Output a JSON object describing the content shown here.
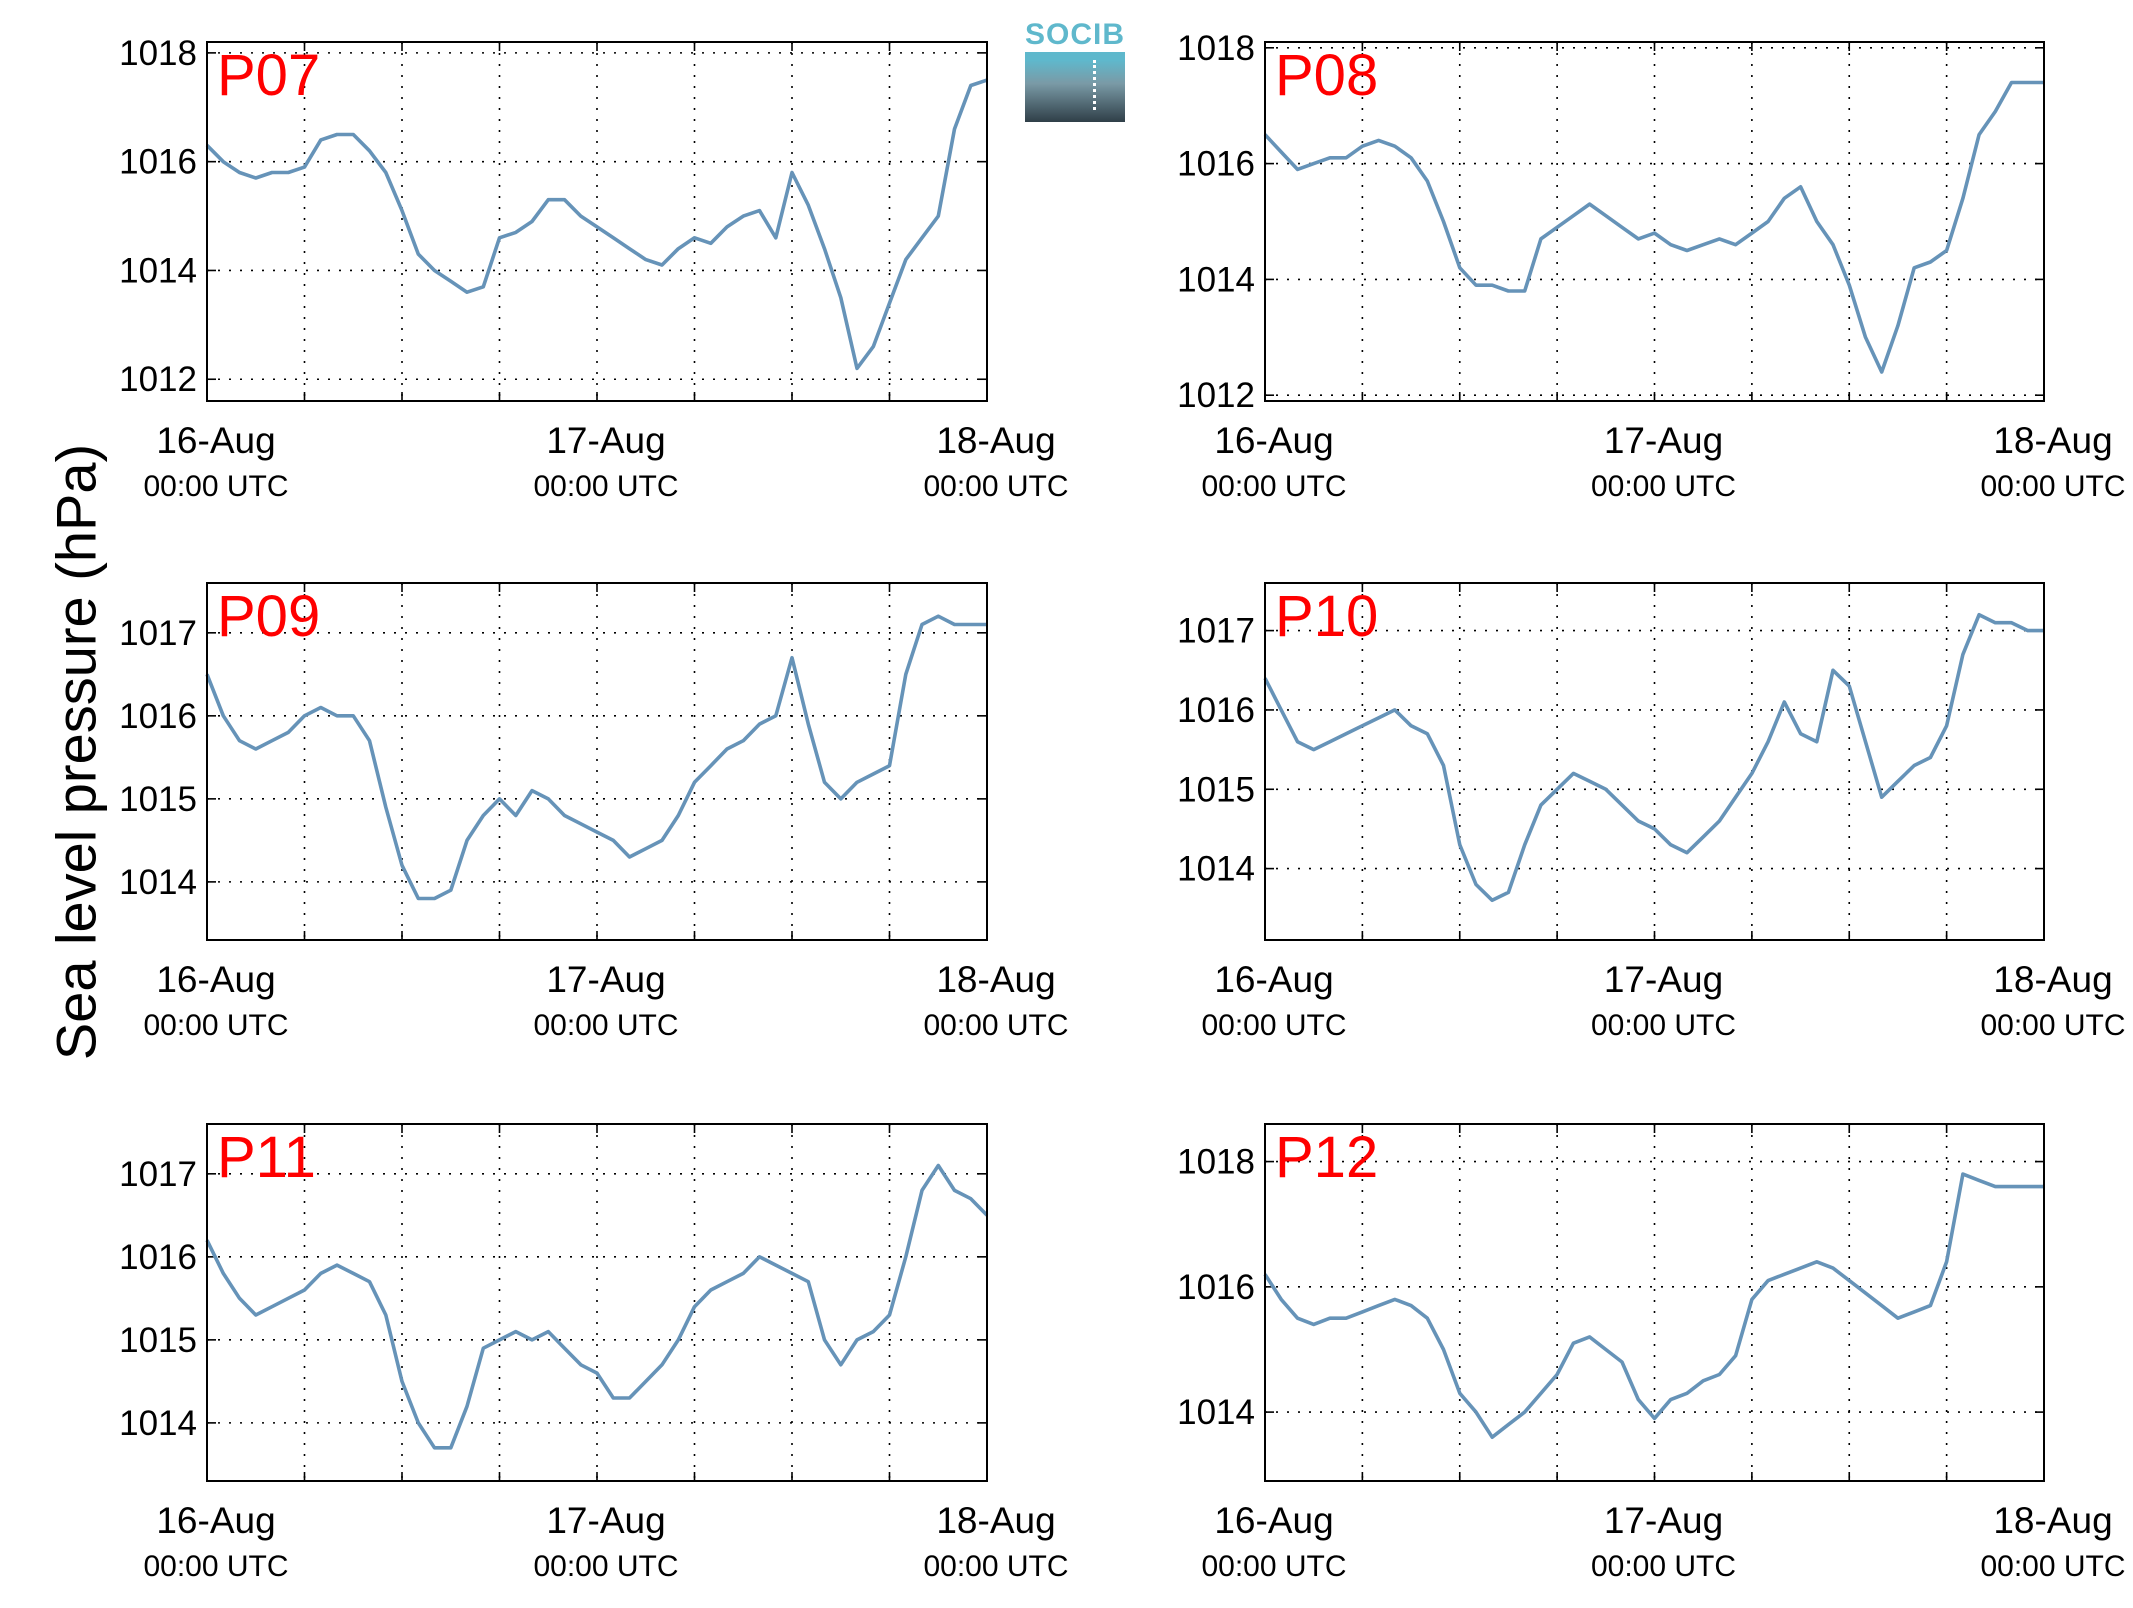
{
  "ylabel": "Sea level pressure (hPa)",
  "logo_text": "SOCIB",
  "line_color": "#6693b8",
  "label_color": "#ff0000",
  "chart_data": [
    {
      "type": "line",
      "title": "P07",
      "xlim": [
        0,
        48
      ],
      "ylim": [
        1011.6,
        1018.2
      ],
      "yticks": [
        1012,
        1014,
        1016,
        1018
      ],
      "x_tick_labels": [
        {
          "x": 0,
          "date": "16-Aug",
          "time": "00:00 UTC"
        },
        {
          "x": 24,
          "date": "17-Aug",
          "time": "00:00 UTC"
        },
        {
          "x": 48,
          "date": "18-Aug",
          "time": "00:00 UTC"
        }
      ],
      "xgrid": [
        6,
        12,
        18,
        24,
        30,
        36,
        42
      ],
      "x": [
        0,
        1,
        2,
        3,
        4,
        5,
        6,
        7,
        8,
        9,
        10,
        11,
        12,
        13,
        14,
        15,
        16,
        17,
        18,
        19,
        20,
        21,
        22,
        23,
        24,
        25,
        26,
        27,
        28,
        29,
        30,
        31,
        32,
        33,
        34,
        35,
        36,
        37,
        38,
        39,
        40,
        41,
        42,
        43,
        44,
        45,
        46,
        47,
        48
      ],
      "values": [
        1016.3,
        1016.0,
        1015.8,
        1015.7,
        1015.8,
        1015.8,
        1015.9,
        1016.4,
        1016.5,
        1016.5,
        1016.2,
        1015.8,
        1015.1,
        1014.3,
        1014.0,
        1013.8,
        1013.6,
        1013.7,
        1014.6,
        1014.7,
        1014.9,
        1015.3,
        1015.3,
        1015.0,
        1014.8,
        1014.6,
        1014.4,
        1014.2,
        1014.1,
        1014.4,
        1014.6,
        1014.5,
        1014.8,
        1015.0,
        1015.1,
        1014.6,
        1015.8,
        1015.2,
        1014.4,
        1013.5,
        1012.2,
        1012.6,
        1013.4,
        1014.2,
        1014.6,
        1015.0,
        1016.6,
        1017.4,
        1017.5
      ]
    },
    {
      "type": "line",
      "title": "P08",
      "xlim": [
        0,
        48
      ],
      "ylim": [
        1011.9,
        1018.1
      ],
      "yticks": [
        1012,
        1014,
        1016,
        1018
      ],
      "x_tick_labels": [
        {
          "x": 0,
          "date": "16-Aug",
          "time": "00:00 UTC"
        },
        {
          "x": 24,
          "date": "17-Aug",
          "time": "00:00 UTC"
        },
        {
          "x": 48,
          "date": "18-Aug",
          "time": "00:00 UTC"
        }
      ],
      "xgrid": [
        6,
        12,
        18,
        24,
        30,
        36,
        42
      ],
      "x": [
        0,
        1,
        2,
        3,
        4,
        5,
        6,
        7,
        8,
        9,
        10,
        11,
        12,
        13,
        14,
        15,
        16,
        17,
        18,
        19,
        20,
        21,
        22,
        23,
        24,
        25,
        26,
        27,
        28,
        29,
        30,
        31,
        32,
        33,
        34,
        35,
        36,
        37,
        38,
        39,
        40,
        41,
        42,
        43,
        44,
        45,
        46,
        47,
        48
      ],
      "values": [
        1016.5,
        1016.2,
        1015.9,
        1016.0,
        1016.1,
        1016.1,
        1016.3,
        1016.4,
        1016.3,
        1016.1,
        1015.7,
        1015.0,
        1014.2,
        1013.9,
        1013.9,
        1013.8,
        1013.8,
        1014.7,
        1014.9,
        1015.1,
        1015.3,
        1015.1,
        1014.9,
        1014.7,
        1014.8,
        1014.6,
        1014.5,
        1014.6,
        1014.7,
        1014.6,
        1014.8,
        1015.0,
        1015.4,
        1015.6,
        1015.0,
        1014.6,
        1013.9,
        1013.0,
        1012.4,
        1013.2,
        1014.2,
        1014.3,
        1014.5,
        1015.4,
        1016.5,
        1016.9,
        1017.4,
        1017.4,
        1017.4
      ]
    },
    {
      "type": "line",
      "title": "P09",
      "xlim": [
        0,
        48
      ],
      "ylim": [
        1013.3,
        1017.6
      ],
      "yticks": [
        1014,
        1015,
        1016,
        1017
      ],
      "x_tick_labels": [
        {
          "x": 0,
          "date": "16-Aug",
          "time": "00:00 UTC"
        },
        {
          "x": 24,
          "date": "17-Aug",
          "time": "00:00 UTC"
        },
        {
          "x": 48,
          "date": "18-Aug",
          "time": "00:00 UTC"
        }
      ],
      "xgrid": [
        6,
        12,
        18,
        24,
        30,
        36,
        42
      ],
      "x": [
        0,
        1,
        2,
        3,
        4,
        5,
        6,
        7,
        8,
        9,
        10,
        11,
        12,
        13,
        14,
        15,
        16,
        17,
        18,
        19,
        20,
        21,
        22,
        23,
        24,
        25,
        26,
        27,
        28,
        29,
        30,
        31,
        32,
        33,
        34,
        35,
        36,
        37,
        38,
        39,
        40,
        41,
        42,
        43,
        44,
        45,
        46,
        47,
        48
      ],
      "values": [
        1016.5,
        1016.0,
        1015.7,
        1015.6,
        1015.7,
        1015.8,
        1016.0,
        1016.1,
        1016.0,
        1016.0,
        1015.7,
        1014.9,
        1014.2,
        1013.8,
        1013.8,
        1013.9,
        1014.5,
        1014.8,
        1015.0,
        1014.8,
        1015.1,
        1015.0,
        1014.8,
        1014.7,
        1014.6,
        1014.5,
        1014.3,
        1014.4,
        1014.5,
        1014.8,
        1015.2,
        1015.4,
        1015.6,
        1015.7,
        1015.9,
        1016.0,
        1016.7,
        1015.9,
        1015.2,
        1015.0,
        1015.2,
        1015.3,
        1015.4,
        1016.5,
        1017.1,
        1017.2,
        1017.1,
        1017.1,
        1017.1
      ]
    },
    {
      "type": "line",
      "title": "P10",
      "xlim": [
        0,
        48
      ],
      "ylim": [
        1013.1,
        1017.6
      ],
      "yticks": [
        1014,
        1015,
        1016,
        1017
      ],
      "x_tick_labels": [
        {
          "x": 0,
          "date": "16-Aug",
          "time": "00:00 UTC"
        },
        {
          "x": 24,
          "date": "17-Aug",
          "time": "00:00 UTC"
        },
        {
          "x": 48,
          "date": "18-Aug",
          "time": "00:00 UTC"
        }
      ],
      "xgrid": [
        6,
        12,
        18,
        24,
        30,
        36,
        42
      ],
      "x": [
        0,
        1,
        2,
        3,
        4,
        5,
        6,
        7,
        8,
        9,
        10,
        11,
        12,
        13,
        14,
        15,
        16,
        17,
        18,
        19,
        20,
        21,
        22,
        23,
        24,
        25,
        26,
        27,
        28,
        29,
        30,
        31,
        32,
        33,
        34,
        35,
        36,
        37,
        38,
        39,
        40,
        41,
        42,
        43,
        44,
        45,
        46,
        47,
        48
      ],
      "values": [
        1016.4,
        1016.0,
        1015.6,
        1015.5,
        1015.6,
        1015.7,
        1015.8,
        1015.9,
        1016.0,
        1015.8,
        1015.7,
        1015.3,
        1014.3,
        1013.8,
        1013.6,
        1013.7,
        1014.3,
        1014.8,
        1015.0,
        1015.2,
        1015.1,
        1015.0,
        1014.8,
        1014.6,
        1014.5,
        1014.3,
        1014.2,
        1014.4,
        1014.6,
        1014.9,
        1015.2,
        1015.6,
        1016.1,
        1015.7,
        1015.6,
        1016.5,
        1016.3,
        1015.6,
        1014.9,
        1015.1,
        1015.3,
        1015.4,
        1015.8,
        1016.7,
        1017.2,
        1017.1,
        1017.1,
        1017.0,
        1017.0
      ]
    },
    {
      "type": "line",
      "title": "P11",
      "xlim": [
        0,
        48
      ],
      "ylim": [
        1013.3,
        1017.6
      ],
      "yticks": [
        1014,
        1015,
        1016,
        1017
      ],
      "x_tick_labels": [
        {
          "x": 0,
          "date": "16-Aug",
          "time": "00:00 UTC"
        },
        {
          "x": 24,
          "date": "17-Aug",
          "time": "00:00 UTC"
        },
        {
          "x": 48,
          "date": "18-Aug",
          "time": "00:00 UTC"
        }
      ],
      "xgrid": [
        6,
        12,
        18,
        24,
        30,
        36,
        42
      ],
      "x": [
        0,
        1,
        2,
        3,
        4,
        5,
        6,
        7,
        8,
        9,
        10,
        11,
        12,
        13,
        14,
        15,
        16,
        17,
        18,
        19,
        20,
        21,
        22,
        23,
        24,
        25,
        26,
        27,
        28,
        29,
        30,
        31,
        32,
        33,
        34,
        35,
        36,
        37,
        38,
        39,
        40,
        41,
        42,
        43,
        44,
        45,
        46,
        47,
        48
      ],
      "values": [
        1016.2,
        1015.8,
        1015.5,
        1015.3,
        1015.4,
        1015.5,
        1015.6,
        1015.8,
        1015.9,
        1015.8,
        1015.7,
        1015.3,
        1014.5,
        1014.0,
        1013.7,
        1013.7,
        1014.2,
        1014.9,
        1015.0,
        1015.1,
        1015.0,
        1015.1,
        1014.9,
        1014.7,
        1014.6,
        1014.3,
        1014.3,
        1014.5,
        1014.7,
        1015.0,
        1015.4,
        1015.6,
        1015.7,
        1015.8,
        1016.0,
        1015.9,
        1015.8,
        1015.7,
        1015.0,
        1014.7,
        1015.0,
        1015.1,
        1015.3,
        1016.0,
        1016.8,
        1017.1,
        1016.8,
        1016.7,
        1016.5
      ]
    },
    {
      "type": "line",
      "title": "P12",
      "xlim": [
        0,
        48
      ],
      "ylim": [
        1012.9,
        1018.6
      ],
      "yticks": [
        1014,
        1016,
        1018
      ],
      "x_tick_labels": [
        {
          "x": 0,
          "date": "16-Aug",
          "time": "00:00 UTC"
        },
        {
          "x": 24,
          "date": "17-Aug",
          "time": "00:00 UTC"
        },
        {
          "x": 48,
          "date": "18-Aug",
          "time": "00:00 UTC"
        }
      ],
      "xgrid": [
        6,
        12,
        18,
        24,
        30,
        36,
        42
      ],
      "x": [
        0,
        1,
        2,
        3,
        4,
        5,
        6,
        7,
        8,
        9,
        10,
        11,
        12,
        13,
        14,
        15,
        16,
        17,
        18,
        19,
        20,
        21,
        22,
        23,
        24,
        25,
        26,
        27,
        28,
        29,
        30,
        31,
        32,
        33,
        34,
        35,
        36,
        37,
        38,
        39,
        40,
        41,
        42,
        43,
        44,
        45,
        46,
        47,
        48
      ],
      "values": [
        1016.2,
        1015.8,
        1015.5,
        1015.4,
        1015.5,
        1015.5,
        1015.6,
        1015.7,
        1015.8,
        1015.7,
        1015.5,
        1015.0,
        1014.3,
        1014.0,
        1013.6,
        1013.8,
        1014.0,
        1014.3,
        1014.6,
        1015.1,
        1015.2,
        1015.0,
        1014.8,
        1014.2,
        1013.9,
        1014.2,
        1014.3,
        1014.5,
        1014.6,
        1014.9,
        1015.8,
        1016.1,
        1016.2,
        1016.3,
        1016.4,
        1016.3,
        1016.1,
        1015.9,
        1015.7,
        1015.5,
        1015.6,
        1015.7,
        1016.4,
        1017.8,
        1017.7,
        1017.6,
        1017.6,
        1017.6,
        1017.6
      ]
    }
  ]
}
